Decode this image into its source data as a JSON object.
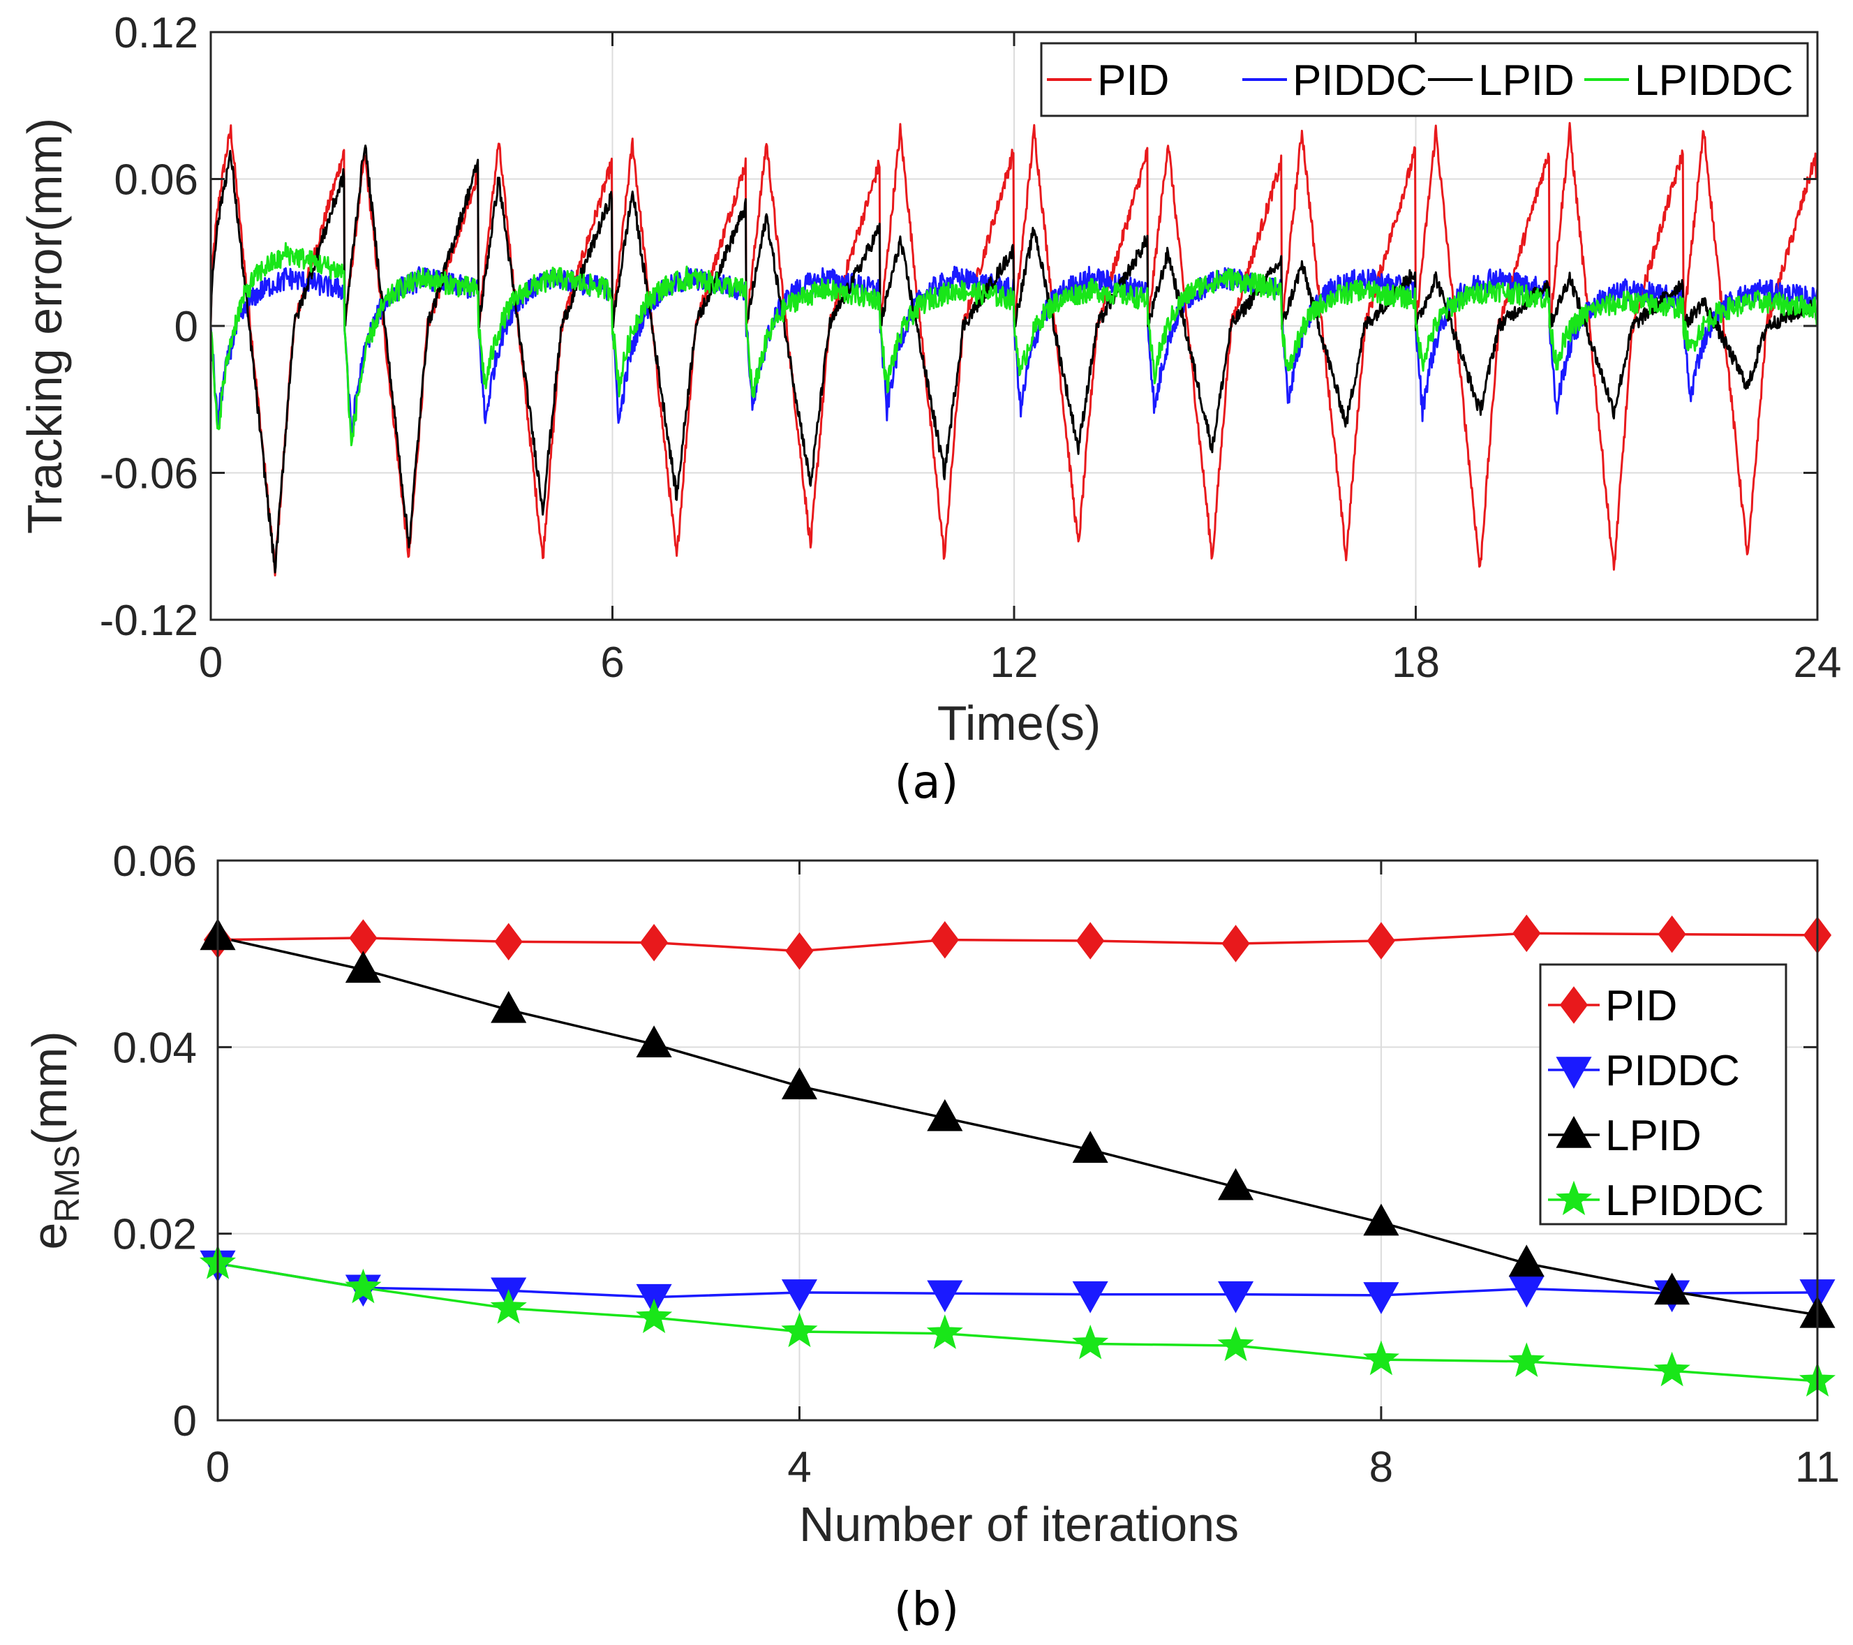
{
  "chart_data": [
    {
      "type": "line",
      "panel_label": "(a)",
      "title": "",
      "xlabel": "Time(s)",
      "ylabel": "Tracking error(mm)",
      "xlim": [
        0,
        24
      ],
      "ylim": [
        -0.12,
        0.12
      ],
      "xticks": [
        0,
        6,
        12,
        18,
        24
      ],
      "xtick_labels": [
        "0",
        "6",
        "12",
        "18",
        "24"
      ],
      "yticks": [
        0.12,
        0.06,
        0,
        -0.06,
        -0.12
      ],
      "ytick_labels": [
        "0.12",
        "0.06",
        "0",
        "-0.06",
        "-0.12"
      ],
      "grid": true,
      "legend_position": "top-right, horizontal",
      "period_s": 2,
      "notes": "Each series is a noisy periodic tracking-error signal with period ~2 s; amplitude values are per-cycle peak/trough estimates.",
      "series": [
        {
          "name": "PID",
          "color": "#e8191c",
          "cycle_peaks": [
            0.08,
            0.07,
            0.075,
            0.075,
            0.075,
            0.08,
            0.08,
            0.075,
            0.08,
            0.08,
            0.08,
            0.08
          ],
          "cycle_troughs": [
            -0.1,
            -0.095,
            -0.095,
            -0.095,
            -0.09,
            -0.095,
            -0.09,
            -0.095,
            -0.095,
            -0.1,
            -0.1,
            -0.095
          ],
          "end_value": 0.06
        },
        {
          "name": "PIDDC",
          "color": "#1a1aff",
          "cycle_peaks": [
            0.02,
            0.02,
            0.02,
            0.02,
            0.02,
            0.02,
            0.02,
            0.02,
            0.02,
            0.02,
            0.015,
            0.015
          ],
          "cycle_troughs": [
            -0.04,
            -0.045,
            -0.04,
            -0.04,
            -0.035,
            -0.035,
            -0.035,
            -0.035,
            -0.03,
            -0.035,
            -0.035,
            -0.03
          ],
          "end_value": 0.015
        },
        {
          "name": "LPID",
          "color": "#000000",
          "cycle_peaks": [
            0.07,
            0.075,
            0.06,
            0.055,
            0.045,
            0.035,
            0.04,
            0.03,
            0.025,
            0.02,
            0.02,
            0.01
          ],
          "cycle_troughs": [
            -0.1,
            -0.09,
            -0.075,
            -0.07,
            -0.065,
            -0.06,
            -0.05,
            -0.05,
            -0.04,
            -0.035,
            -0.035,
            -0.025
          ],
          "end_value": 0.005
        },
        {
          "name": "LPIDDC",
          "color": "#19e619",
          "cycle_peaks": [
            0.03,
            0.02,
            0.02,
            0.02,
            0.015,
            0.015,
            0.015,
            0.02,
            0.015,
            0.015,
            0.01,
            0.01
          ],
          "cycle_troughs": [
            -0.045,
            -0.05,
            -0.025,
            -0.025,
            -0.03,
            -0.025,
            -0.02,
            -0.02,
            -0.02,
            -0.015,
            -0.015,
            -0.01
          ],
          "end_value": 0.003
        }
      ]
    },
    {
      "type": "line",
      "panel_label": "(b)",
      "title": "",
      "xlabel": "Number of iterations",
      "ylabel_main": "e",
      "ylabel_subscript": "RMS",
      "ylabel_units": "(mm)",
      "xlim": [
        0,
        11
      ],
      "ylim": [
        0,
        0.06
      ],
      "xticks": [
        0,
        4,
        8,
        11
      ],
      "xtick_labels": [
        "0",
        "4",
        "8",
        "11"
      ],
      "yticks": [
        0.06,
        0.04,
        0.02,
        0
      ],
      "ytick_labels": [
        "0.06",
        "0.04",
        "0.02",
        "0"
      ],
      "grid": true,
      "legend_position": "right, vertical",
      "x": [
        0,
        1,
        2,
        3,
        4,
        5,
        6,
        7,
        8,
        9,
        10,
        11
      ],
      "series": [
        {
          "name": "PID",
          "color": "#e8191c",
          "marker": "diamond",
          "values": [
            0.0515,
            0.0517,
            0.0513,
            0.0512,
            0.0503,
            0.0515,
            0.0514,
            0.0511,
            0.0514,
            0.0522,
            0.0521,
            0.052
          ]
        },
        {
          "name": "PIDDC",
          "color": "#1a1aff",
          "marker": "triangle-down",
          "values": [
            0.0168,
            0.0142,
            0.0139,
            0.0132,
            0.0137,
            0.0136,
            0.0135,
            0.0135,
            0.0134,
            0.0141,
            0.0136,
            0.0137
          ]
        },
        {
          "name": "LPID",
          "color": "#000000",
          "marker": "triangle-up",
          "values": [
            0.0518,
            0.0483,
            0.044,
            0.0403,
            0.0358,
            0.0324,
            0.029,
            0.025,
            0.0212,
            0.0168,
            0.0138,
            0.0113
          ]
        },
        {
          "name": "LPIDDC",
          "color": "#19e619",
          "marker": "star",
          "values": [
            0.0168,
            0.0142,
            0.012,
            0.011,
            0.0095,
            0.0093,
            0.0082,
            0.008,
            0.0065,
            0.0063,
            0.0053,
            0.0042
          ]
        }
      ]
    }
  ]
}
